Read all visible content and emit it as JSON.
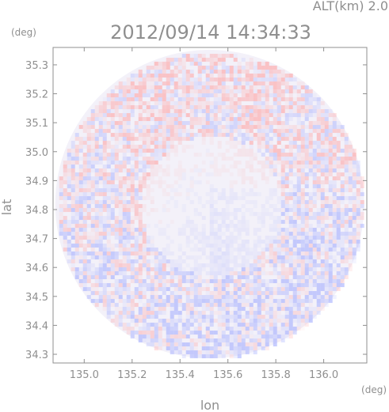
{
  "chart_data": {
    "type": "heatmap",
    "title": "2012/09/14 14:34:33",
    "subtitle": "ALT(km) 2.0",
    "xlabel": "lon",
    "ylabel": "lat",
    "x_unit": "(deg)",
    "y_unit": "(deg)",
    "xlim": [
      134.87,
      136.18
    ],
    "ylim": [
      34.27,
      35.36
    ],
    "x_ticks": [
      135.0,
      135.2,
      135.4,
      135.6,
      135.8,
      136.0
    ],
    "x_tick_labels": [
      "135.0",
      "135.2",
      "135.4",
      "135.6",
      "135.8",
      "136.0"
    ],
    "y_ticks": [
      34.3,
      34.4,
      34.5,
      34.6,
      34.7,
      34.8,
      34.9,
      35.0,
      35.1,
      35.2,
      35.3
    ],
    "y_tick_labels": [
      "34.3",
      "34.4",
      "34.5",
      "34.6",
      "34.7",
      "34.8",
      "34.9",
      "35.0",
      "35.1",
      "35.2",
      "35.3"
    ],
    "radar_center": [
      135.524,
      34.819
    ],
    "radar_radius_deg": 0.645,
    "grid": false,
    "legend": "none",
    "colors": {
      "positive": "#ff9a9a",
      "negative": "#9aa6ff",
      "neutral": "#f2f2fb"
    }
  }
}
